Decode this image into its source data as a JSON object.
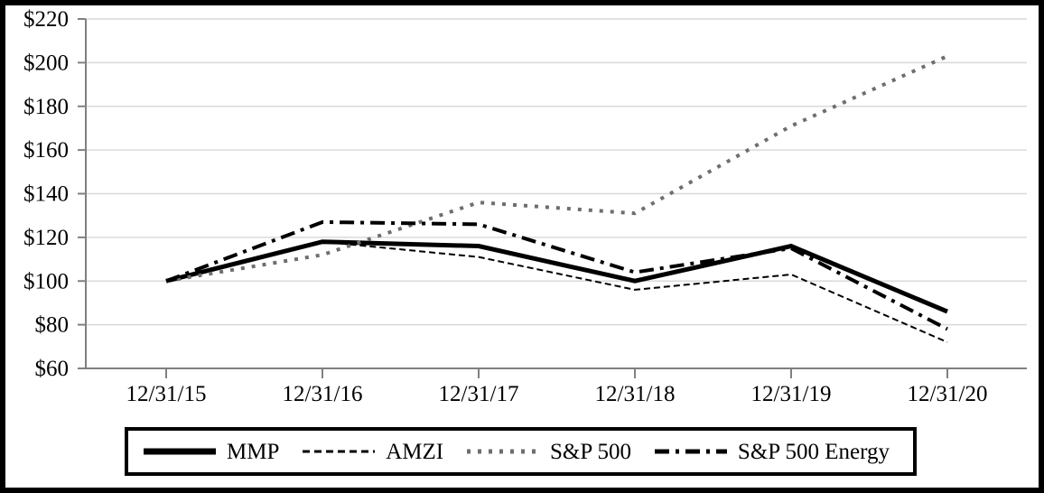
{
  "chart_data": {
    "type": "line",
    "x": [
      "12/31/15",
      "12/31/16",
      "12/31/17",
      "12/31/18",
      "12/31/19",
      "12/31/20"
    ],
    "series": [
      {
        "name": "MMP",
        "values": [
          100,
          118,
          116,
          100,
          116,
          86
        ],
        "color": "#000000",
        "style": "solid",
        "width": 5
      },
      {
        "name": "AMZI",
        "values": [
          100,
          118,
          111,
          96,
          103,
          72
        ],
        "color": "#000000",
        "style": "dashed",
        "width": 2
      },
      {
        "name": "S&P 500",
        "values": [
          100,
          112,
          136,
          131,
          171,
          203
        ],
        "color": "#6e6e6e",
        "style": "dotted",
        "width": 4
      },
      {
        "name": "S&P 500 Energy",
        "values": [
          100,
          127,
          126,
          104,
          115,
          78
        ],
        "color": "#000000",
        "style": "dashdot",
        "width": 4
      }
    ],
    "title": "",
    "xlabel": "",
    "ylabel": "",
    "ylim": [
      60,
      220
    ],
    "ytick_step": 20,
    "ytick_prefix": "$",
    "grid": true,
    "legend_position": "bottom"
  },
  "colors": {
    "axis": "#808080",
    "gridline": "#d9d9d9",
    "tick_label": "#000000",
    "frame_border": "#000000",
    "legend_border": "#000000",
    "background": "#ffffff"
  }
}
